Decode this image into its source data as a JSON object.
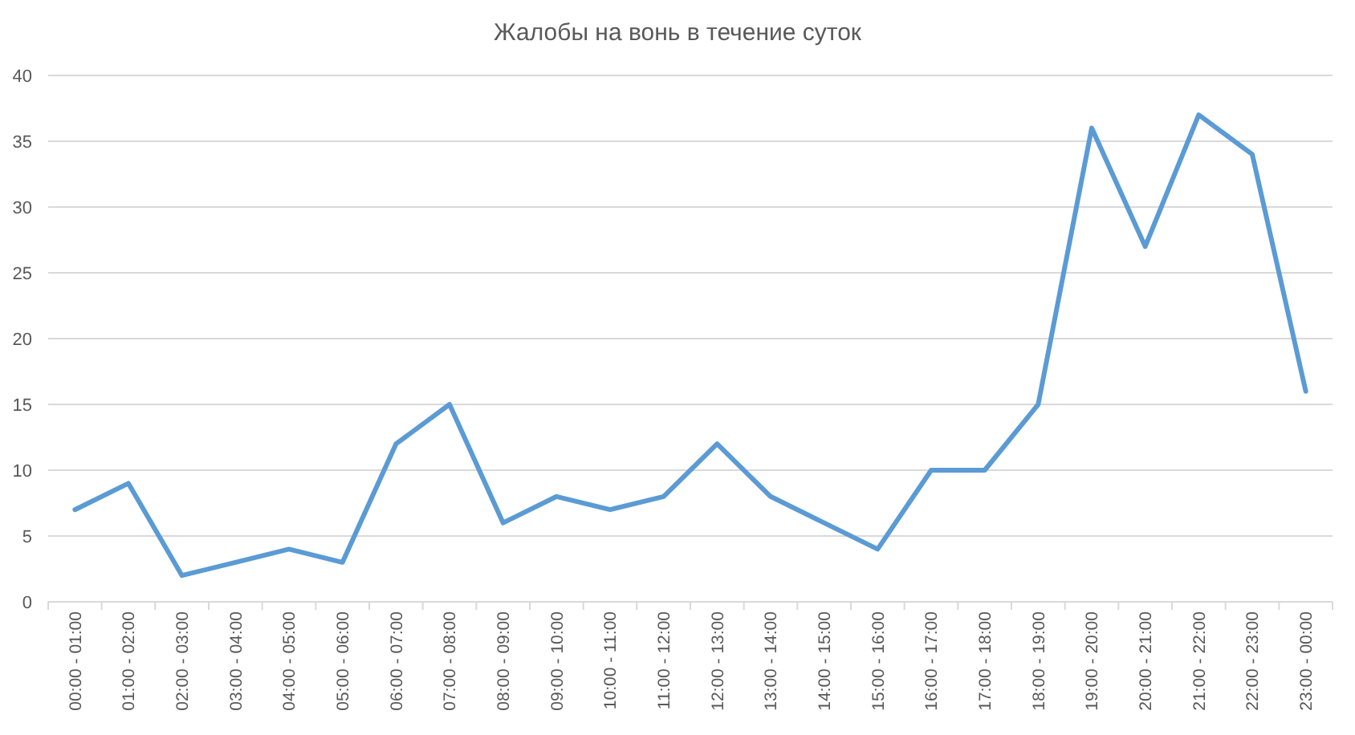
{
  "chart_data": {
    "type": "line",
    "title": "Жалобы на вонь в течение суток",
    "categories": [
      "00:00 - 01:00",
      "01:00 - 02:00",
      "02:00 - 03:00",
      "03:00 - 04:00",
      "04:00 - 05:00",
      "05:00 - 06:00",
      "06:00 - 07:00",
      "07:00 - 08:00",
      "08:00 - 09:00",
      "09:00 - 10:00",
      "10:00 - 11:00",
      "11:00 - 12:00",
      "12:00 - 13:00",
      "13:00 - 14:00",
      "14:00 - 15:00",
      "15:00 - 16:00",
      "16:00 - 17:00",
      "17:00 - 18:00",
      "18:00 - 19:00",
      "19:00 - 20:00",
      "20:00 - 21:00",
      "21:00 - 22:00",
      "22:00 - 23:00",
      "23:00 - 00:00"
    ],
    "series": [
      {
        "color": "#5b9bd5",
        "values": [
          7,
          9,
          2,
          3,
          4,
          3,
          12,
          15,
          6,
          8,
          7,
          8,
          12,
          8,
          6,
          4,
          10,
          10,
          15,
          36,
          27,
          37,
          34,
          16
        ]
      }
    ],
    "ylim": [
      0,
      40
    ],
    "yticks": [
      0,
      5,
      10,
      15,
      20,
      25,
      30,
      35,
      40
    ],
    "grid": "y",
    "marker": "none",
    "line_style": "solid"
  }
}
